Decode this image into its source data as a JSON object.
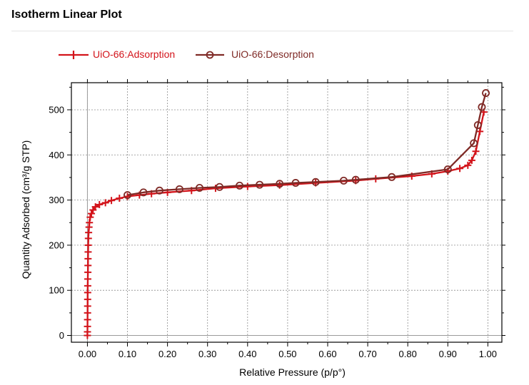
{
  "page": {
    "title": "Isotherm Linear Plot"
  },
  "colors": {
    "adsorption": "#d3141b",
    "desorption": "#7f2a26",
    "grid": "#8c8c8c",
    "axis": "#000000"
  },
  "chart_data": {
    "type": "line",
    "title": "",
    "xlabel": "Relative Pressure (p/p°)",
    "ylabel": "Quantity Adsorbed (cm³/g STP)",
    "xlim": [
      -0.04,
      1.035
    ],
    "ylim": [
      -15,
      560
    ],
    "xticks": [
      "0.00",
      "0.10",
      "0.20",
      "0.30",
      "0.40",
      "0.50",
      "0.60",
      "0.70",
      "0.80",
      "0.90",
      "1.00"
    ],
    "yticks": [
      "0",
      "100",
      "200",
      "300",
      "400",
      "500"
    ],
    "grid": true,
    "legend_position": "top-left",
    "series": [
      {
        "name": "UiO-66:Adsorption",
        "marker": "plus",
        "color": "#d3141b",
        "x": [
          0.0,
          0.0001,
          0.0002,
          0.0003,
          0.0004,
          0.0005,
          0.0006,
          0.0007,
          0.0008,
          0.001,
          0.0012,
          0.0014,
          0.0016,
          0.0018,
          0.002,
          0.0024,
          0.003,
          0.004,
          0.005,
          0.007,
          0.01,
          0.014,
          0.02,
          0.03,
          0.045,
          0.06,
          0.08,
          0.1,
          0.13,
          0.16,
          0.2,
          0.26,
          0.32,
          0.4,
          0.48,
          0.57,
          0.67,
          0.72,
          0.81,
          0.86,
          0.9,
          0.93,
          0.95,
          0.96,
          0.97,
          0.98,
          0.99
        ],
        "y": [
          0,
          8,
          20,
          35,
          50,
          65,
          80,
          95,
          110,
          125,
          140,
          155,
          170,
          185,
          200,
          215,
          228,
          240,
          250,
          262,
          270,
          278,
          285,
          290,
          294,
          299,
          304,
          308,
          311,
          314,
          317,
          321,
          326,
          330,
          333,
          338,
          343,
          347,
          353,
          358,
          364,
          370,
          377,
          388,
          408,
          452,
          495
        ]
      },
      {
        "name": "UiO-66:Desorption",
        "marker": "circle",
        "color": "#7f2a26",
        "x": [
          0.995,
          0.985,
          0.975,
          0.965,
          0.9,
          0.76,
          0.67,
          0.64,
          0.57,
          0.52,
          0.48,
          0.43,
          0.38,
          0.33,
          0.28,
          0.23,
          0.18,
          0.14,
          0.1
        ],
        "y": [
          537,
          506,
          466,
          426,
          368,
          351,
          345,
          343,
          340,
          338,
          336,
          334,
          332,
          329,
          327,
          324,
          321,
          317,
          311
        ]
      }
    ]
  }
}
